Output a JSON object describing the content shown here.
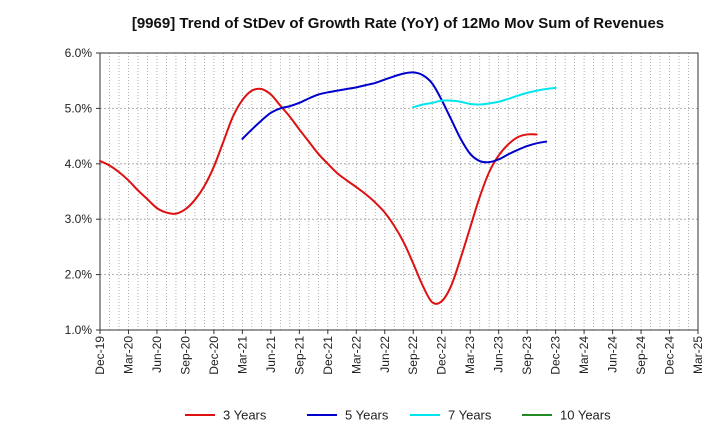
{
  "chart_data": {
    "type": "line",
    "title": "[9969]  Trend of StDev of Growth Rate (YoY) of 12Mo Mov Sum of Revenues",
    "xlabel": "",
    "ylabel": "",
    "ylim": [
      1.0,
      6.0
    ],
    "y_ticks": [
      1.0,
      2.0,
      3.0,
      4.0,
      5.0,
      6.0
    ],
    "y_tick_labels": [
      "1.0%",
      "2.0%",
      "3.0%",
      "4.0%",
      "5.0%",
      "6.0%"
    ],
    "x_tick_labels": [
      "Dec-19",
      "Mar-20",
      "Jun-20",
      "Sep-20",
      "Dec-20",
      "Mar-21",
      "Jun-21",
      "Sep-21",
      "Dec-21",
      "Mar-22",
      "Jun-22",
      "Sep-22",
      "Dec-22",
      "Mar-23",
      "Jun-23",
      "Sep-23",
      "Dec-23",
      "Mar-24",
      "Jun-24",
      "Sep-24",
      "Dec-24",
      "Mar-25"
    ],
    "grid": true,
    "legend_position": "bottom",
    "series": [
      {
        "name": "3 Years",
        "color": "#dd1111",
        "start_index": 0,
        "values": [
          4.05,
          3.97,
          3.85,
          3.7,
          3.52,
          3.36,
          3.2,
          3.12,
          3.1,
          3.18,
          3.35,
          3.6,
          3.95,
          4.4,
          4.85,
          5.15,
          5.32,
          5.35,
          5.25,
          5.05,
          4.85,
          4.62,
          4.4,
          4.18,
          4.0,
          3.83,
          3.7,
          3.58,
          3.45,
          3.3,
          3.12,
          2.88,
          2.58,
          2.2,
          1.8,
          1.5,
          1.52,
          1.8,
          2.3,
          2.85,
          3.4,
          3.85,
          4.15,
          4.35,
          4.48,
          4.53,
          4.53
        ]
      },
      {
        "name": "5 Years",
        "color": "#0000cc",
        "start_index": 15,
        "values": [
          4.45,
          4.62,
          4.78,
          4.92,
          5.0,
          5.04,
          5.1,
          5.18,
          5.25,
          5.29,
          5.32,
          5.35,
          5.38,
          5.42,
          5.46,
          5.52,
          5.58,
          5.63,
          5.65,
          5.6,
          5.45,
          5.15,
          4.8,
          4.45,
          4.18,
          4.05,
          4.03,
          4.08,
          4.17,
          4.25,
          4.32,
          4.37,
          4.4
        ]
      },
      {
        "name": "7 Years",
        "color": "#00e5ee",
        "start_index": 33,
        "values": [
          5.02,
          5.07,
          5.1,
          5.14,
          5.14,
          5.12,
          5.08,
          5.07,
          5.09,
          5.12,
          5.17,
          5.23,
          5.28,
          5.32,
          5.35,
          5.37
        ]
      },
      {
        "name": "10 Years",
        "color": "#228b22",
        "start_index": 0,
        "values": []
      }
    ]
  }
}
